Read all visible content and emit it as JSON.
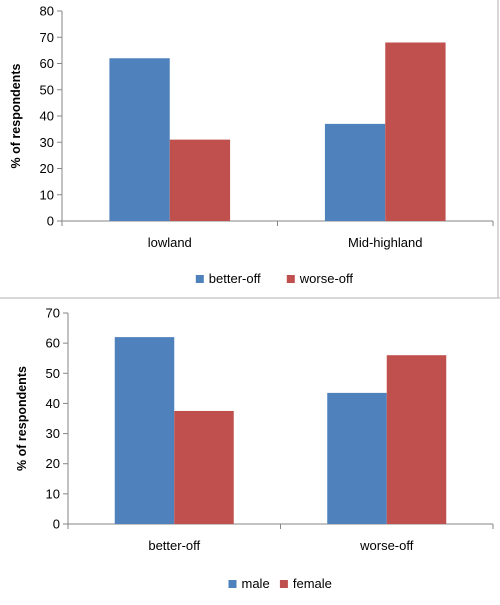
{
  "chart_data": [
    {
      "type": "bar",
      "categories": [
        "lowland",
        "Mid-highland"
      ],
      "series": [
        {
          "name": "better-off",
          "values": [
            62,
            37
          ],
          "color": "#4F81BD"
        },
        {
          "name": "worse-off",
          "values": [
            31,
            68
          ],
          "color": "#C0504D"
        }
      ],
      "ylabel": "% of respondents",
      "ylim": [
        0,
        80
      ],
      "yticks": [
        0,
        10,
        20,
        30,
        40,
        50,
        60,
        70,
        80
      ],
      "grid": false,
      "legend": "bottom"
    },
    {
      "type": "bar",
      "categories": [
        "better-off",
        "worse-off"
      ],
      "series": [
        {
          "name": "male",
          "values": [
            62,
            43.5
          ],
          "color": "#4F81BD"
        },
        {
          "name": "female",
          "values": [
            37.5,
            56
          ],
          "color": "#C0504D"
        }
      ],
      "ylabel": "% of respondents",
      "ylim": [
        0,
        70
      ],
      "yticks": [
        0,
        10,
        20,
        30,
        40,
        50,
        60,
        70
      ],
      "grid": false,
      "legend": "bottom"
    }
  ]
}
